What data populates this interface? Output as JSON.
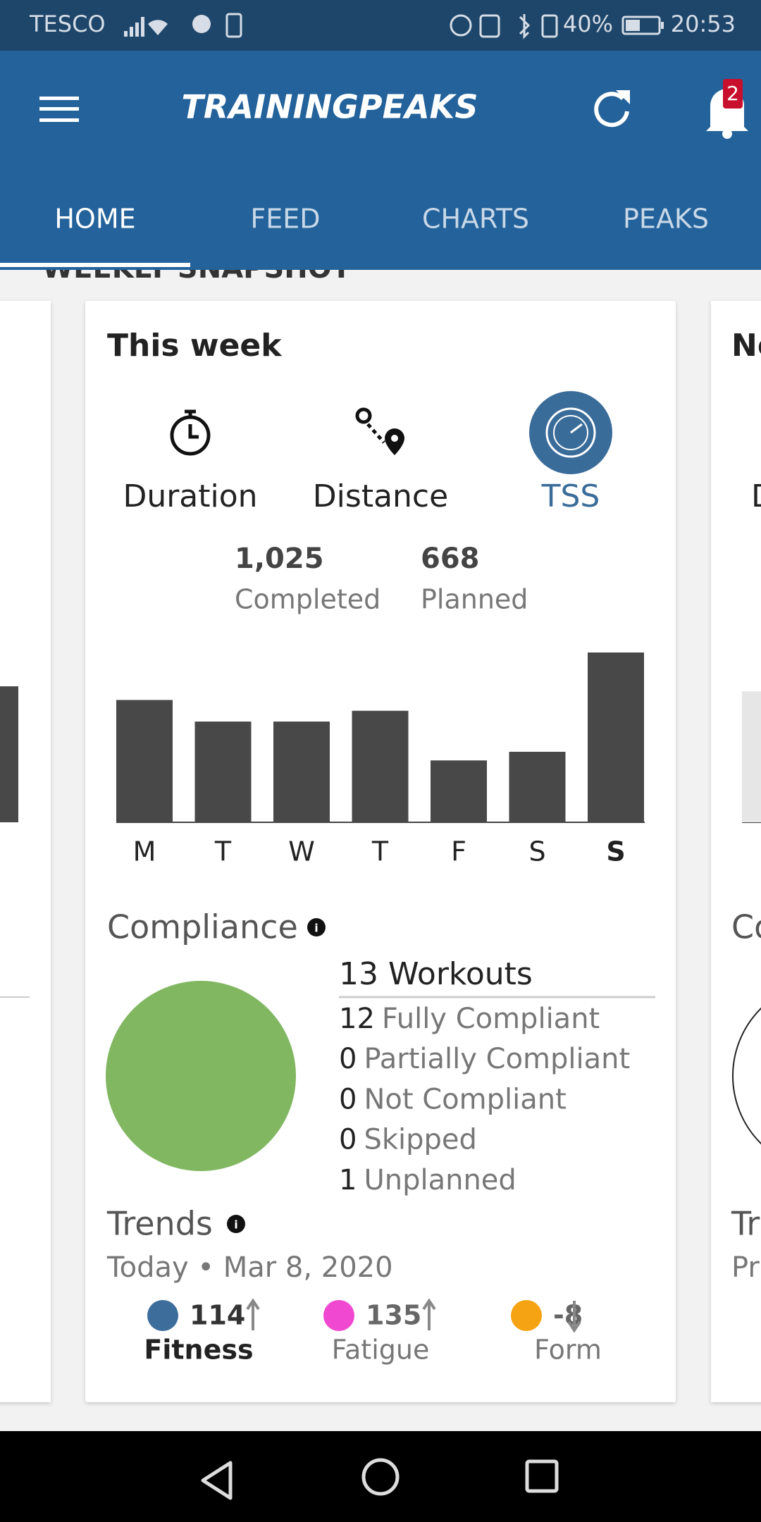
{
  "status_bar": {
    "carrier": "TESCO",
    "battery": "40%",
    "time": "20:53"
  },
  "header": {
    "logo": "TRAININGPEAKS",
    "notification_count": "2",
    "tabs": [
      "HOME",
      "FEED",
      "CHARTS",
      "PEAKS"
    ]
  },
  "section_title": "WEEKLY SNAPSHOT",
  "card": {
    "title": "This week",
    "metrics": [
      "Duration",
      "Distance",
      "TSS"
    ],
    "completed": {
      "value": "1,025",
      "label": "Completed"
    },
    "planned": {
      "value": "668",
      "label": "Planned"
    },
    "compliance": {
      "title": "Compliance",
      "workouts": "13 Workouts",
      "items": [
        {
          "count": "12",
          "label": "Fully Compliant"
        },
        {
          "count": "0",
          "label": "Partially Compliant"
        },
        {
          "count": "0",
          "label": "Not Compliant"
        },
        {
          "count": "0",
          "label": "Skipped"
        },
        {
          "count": "1",
          "label": "Unplanned"
        }
      ]
    },
    "trends": {
      "title": "Trends",
      "date": "Today • Mar 8, 2020",
      "items": [
        {
          "value": "114",
          "label": "Fitness",
          "color": "#3d6d9a"
        },
        {
          "value": "135",
          "label": "Fatigue",
          "color": "#f048d0"
        },
        {
          "value": "-8",
          "label": "Form",
          "color": "#f5a313"
        }
      ]
    }
  },
  "chart_data": {
    "type": "bar",
    "categories": [
      "M",
      "T",
      "W",
      "T",
      "F",
      "S",
      "S"
    ],
    "values": [
      170,
      140,
      140,
      155,
      86,
      98,
      236
    ],
    "color": "#484848"
  },
  "side_cards": {
    "left_bar": 189,
    "right_bar": 182,
    "right_fragments": [
      "Ne",
      "D",
      "Co",
      "Tr",
      "Pr"
    ]
  }
}
